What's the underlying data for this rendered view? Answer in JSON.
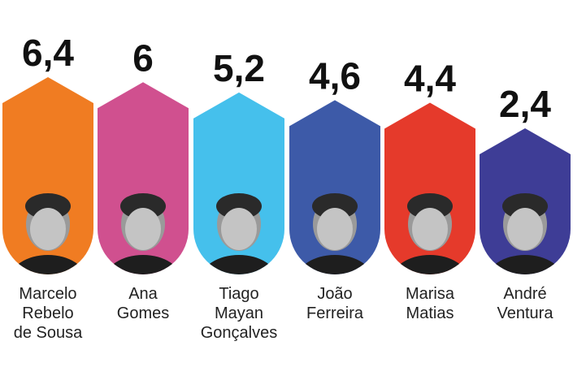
{
  "chart_data": {
    "type": "bar",
    "title": "",
    "categories": [
      "Marcelo Rebelo de Sousa",
      "Ana Gomes",
      "Tiago Mayan Gonçalves",
      "João Ferreira",
      "Marisa Matias",
      "André Ventura"
    ],
    "label_lines": [
      [
        "Marcelo",
        "Rebelo",
        "de Sousa"
      ],
      [
        "Ana",
        "Gomes"
      ],
      [
        "Tiago",
        "Mayan",
        "Gonçalves"
      ],
      [
        "João",
        "Ferreira"
      ],
      [
        "Marisa",
        "Matias"
      ],
      [
        "André",
        "Ventura"
      ]
    ],
    "values": [
      6.4,
      6,
      5.2,
      4.6,
      4.4,
      2.4
    ],
    "value_labels": [
      "6,4",
      "6",
      "5,2",
      "4,6",
      "4,4",
      "2,4"
    ],
    "colors": [
      "#f07c22",
      "#d0508f",
      "#45c0ec",
      "#3d5aa8",
      "#e53a2b",
      "#3e3d96"
    ],
    "portraits": "black-and-white photo of each candidate at bar bottom",
    "grid": false,
    "legend": "none"
  }
}
